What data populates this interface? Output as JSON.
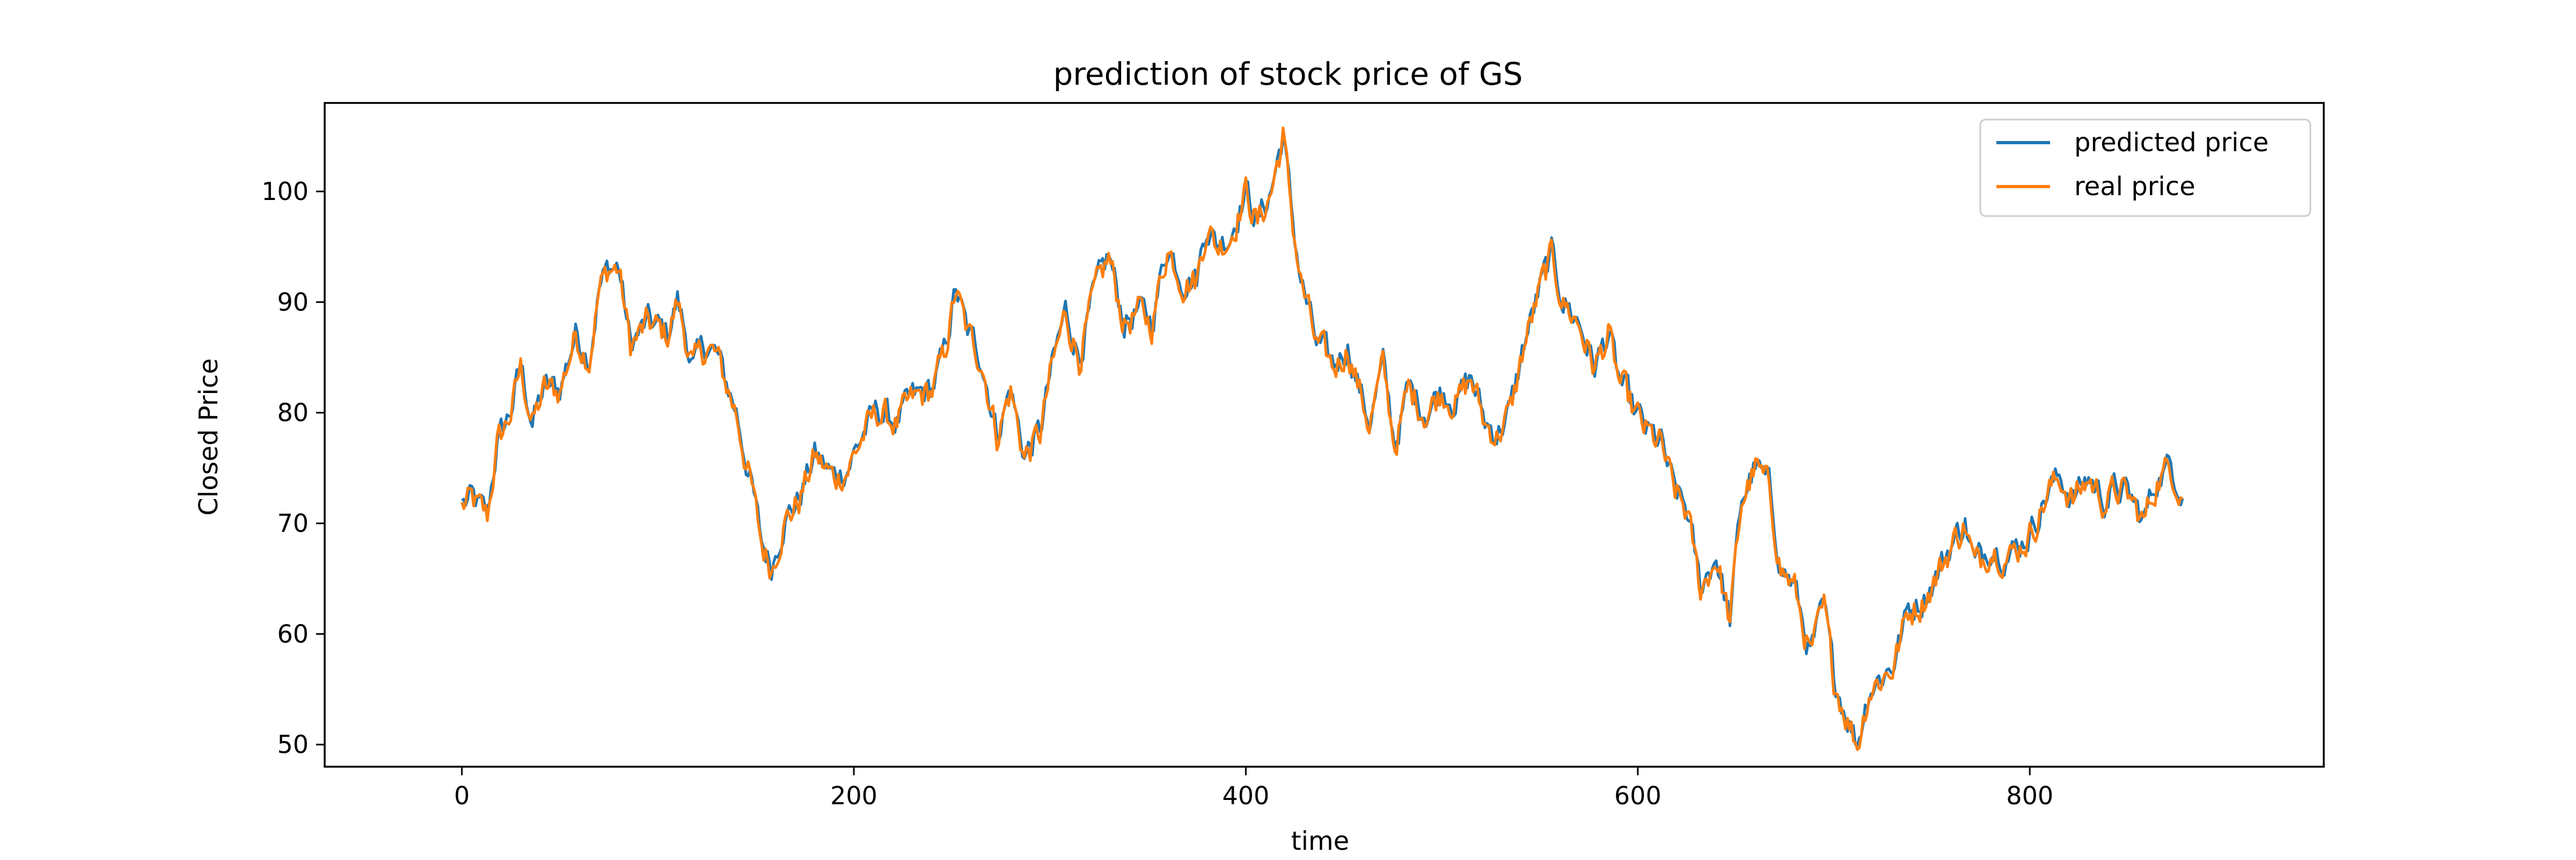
{
  "chart_data": {
    "type": "line",
    "title": "prediction of stock price of GS",
    "xlabel": "time",
    "ylabel": "Closed Price",
    "xlim": [
      -70,
      950
    ],
    "ylim": [
      48,
      108
    ],
    "xticks": [
      0,
      200,
      400,
      600,
      800
    ],
    "yticks": [
      50,
      60,
      70,
      80,
      90,
      100
    ],
    "grid": false,
    "legend": "top-right",
    "colors": {
      "predicted": "#1f77b4",
      "real": "#ff7f0e"
    },
    "anchors": [
      [
        0,
        71.5
      ],
      [
        5,
        72
      ],
      [
        10,
        71
      ],
      [
        13,
        70.5
      ],
      [
        18,
        77
      ],
      [
        25,
        80
      ],
      [
        30,
        84
      ],
      [
        36,
        79
      ],
      [
        42,
        82
      ],
      [
        50,
        82
      ],
      [
        58,
        87
      ],
      [
        65,
        85
      ],
      [
        70,
        91
      ],
      [
        75,
        93
      ],
      [
        80,
        93
      ],
      [
        86,
        86
      ],
      [
        95,
        88
      ],
      [
        105,
        87
      ],
      [
        110,
        90
      ],
      [
        118,
        84
      ],
      [
        125,
        86
      ],
      [
        130,
        85
      ],
      [
        140,
        80
      ],
      [
        148,
        73
      ],
      [
        153,
        68
      ],
      [
        158,
        66
      ],
      [
        164,
        70
      ],
      [
        172,
        72
      ],
      [
        180,
        76
      ],
      [
        190,
        74
      ],
      [
        197,
        75
      ],
      [
        205,
        78
      ],
      [
        212,
        80
      ],
      [
        222,
        79
      ],
      [
        230,
        81
      ],
      [
        240,
        82
      ],
      [
        246,
        85
      ],
      [
        252,
        91
      ],
      [
        258,
        87
      ],
      [
        265,
        85
      ],
      [
        273,
        78
      ],
      [
        280,
        82
      ],
      [
        287,
        76
      ],
      [
        295,
        78
      ],
      [
        300,
        83
      ],
      [
        308,
        89
      ],
      [
        315,
        85
      ],
      [
        322,
        90
      ],
      [
        330,
        94
      ],
      [
        338,
        88
      ],
      [
        345,
        89
      ],
      [
        352,
        88
      ],
      [
        360,
        95
      ],
      [
        368,
        92
      ],
      [
        375,
        92
      ],
      [
        380,
        97
      ],
      [
        385,
        95
      ],
      [
        392,
        96
      ],
      [
        400,
        100
      ],
      [
        406,
        97
      ],
      [
        413,
        100
      ],
      [
        419,
        105
      ],
      [
        424,
        97
      ],
      [
        428,
        92
      ],
      [
        436,
        86
      ],
      [
        445,
        84
      ],
      [
        452,
        86
      ],
      [
        458,
        82
      ],
      [
        463,
        79
      ],
      [
        470,
        84
      ],
      [
        476,
        77
      ],
      [
        483,
        82
      ],
      [
        492,
        80
      ],
      [
        500,
        82
      ],
      [
        508,
        81
      ],
      [
        515,
        83
      ],
      [
        522,
        79
      ],
      [
        528,
        78
      ],
      [
        535,
        80
      ],
      [
        542,
        86
      ],
      [
        550,
        91
      ],
      [
        556,
        94
      ],
      [
        562,
        90
      ],
      [
        570,
        88
      ],
      [
        578,
        84
      ],
      [
        585,
        87
      ],
      [
        590,
        83
      ],
      [
        598,
        80
      ],
      [
        605,
        78
      ],
      [
        612,
        77
      ],
      [
        618,
        73
      ],
      [
        625,
        71
      ],
      [
        632,
        64
      ],
      [
        640,
        67
      ],
      [
        647,
        61
      ],
      [
        653,
        72
      ],
      [
        660,
        75
      ],
      [
        667,
        73
      ],
      [
        673,
        66
      ],
      [
        680,
        64
      ],
      [
        688,
        58
      ],
      [
        695,
        62
      ],
      [
        700,
        56
      ],
      [
        706,
        53
      ],
      [
        712,
        50
      ],
      [
        718,
        55
      ],
      [
        724,
        56
      ],
      [
        730,
        57
      ],
      [
        738,
        62
      ],
      [
        745,
        63
      ],
      [
        752,
        65
      ],
      [
        760,
        68
      ],
      [
        767,
        70
      ],
      [
        772,
        66
      ],
      [
        780,
        68
      ],
      [
        790,
        67
      ],
      [
        800,
        69
      ],
      [
        810,
        73
      ],
      [
        816,
        74
      ],
      [
        822,
        72
      ],
      [
        830,
        74
      ],
      [
        838,
        72
      ],
      [
        845,
        73
      ],
      [
        852,
        72
      ],
      [
        858,
        70
      ],
      [
        865,
        74
      ],
      [
        872,
        75
      ],
      [
        878,
        73
      ]
    ],
    "series": [
      {
        "name": "predicted price",
        "key": "predicted",
        "lag": 1.5,
        "scale": 0.95,
        "offset": 0.2
      },
      {
        "name": "real price",
        "key": "real",
        "lag": 0,
        "scale": 1.0,
        "offset": 0
      }
    ]
  }
}
